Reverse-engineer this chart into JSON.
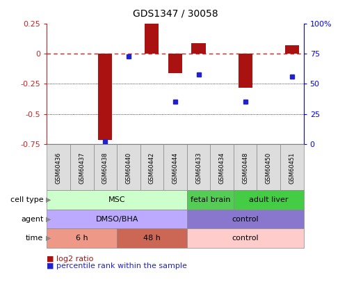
{
  "title": "GDS1347 / 30058",
  "samples": [
    "GSM60436",
    "GSM60437",
    "GSM60438",
    "GSM60440",
    "GSM60442",
    "GSM60444",
    "GSM60433",
    "GSM60434",
    "GSM60448",
    "GSM60450",
    "GSM60451"
  ],
  "log2_ratio": [
    0.0,
    0.0,
    -0.72,
    0.0,
    0.25,
    -0.16,
    0.09,
    0.0,
    -0.28,
    0.0,
    0.07
  ],
  "percentile_rank": [
    null,
    null,
    2,
    73,
    null,
    35,
    58,
    null,
    35,
    null,
    56
  ],
  "ylim_left": [
    -0.75,
    0.25
  ],
  "ylim_right": [
    0,
    100
  ],
  "yticks_left": [
    0.25,
    0,
    -0.25,
    -0.5,
    -0.75
  ],
  "yticks_right": [
    100,
    75,
    50,
    25,
    0
  ],
  "bar_color": "#aa1111",
  "dot_color": "#2222cc",
  "hline_color": "#cc2222",
  "cell_type_groups": [
    {
      "label": "MSC",
      "start": 0,
      "end": 6,
      "color": "#ccffcc"
    },
    {
      "label": "fetal brain",
      "start": 6,
      "end": 8,
      "color": "#55cc55"
    },
    {
      "label": "adult liver",
      "start": 8,
      "end": 11,
      "color": "#44cc44"
    }
  ],
  "agent_groups": [
    {
      "label": "DMSO/BHA",
      "start": 0,
      "end": 6,
      "color": "#bbaaff"
    },
    {
      "label": "control",
      "start": 6,
      "end": 11,
      "color": "#8877cc"
    }
  ],
  "time_groups": [
    {
      "label": "6 h",
      "start": 0,
      "end": 3,
      "color": "#ee9988"
    },
    {
      "label": "48 h",
      "start": 3,
      "end": 6,
      "color": "#cc6655"
    },
    {
      "label": "control",
      "start": 6,
      "end": 11,
      "color": "#ffcccc"
    }
  ],
  "row_labels": [
    "cell type",
    "agent",
    "time"
  ],
  "legend_red_label": "log2 ratio",
  "legend_blue_label": "percentile rank within the sample",
  "legend_red_color": "#aa1111",
  "legend_blue_color": "#2222cc"
}
